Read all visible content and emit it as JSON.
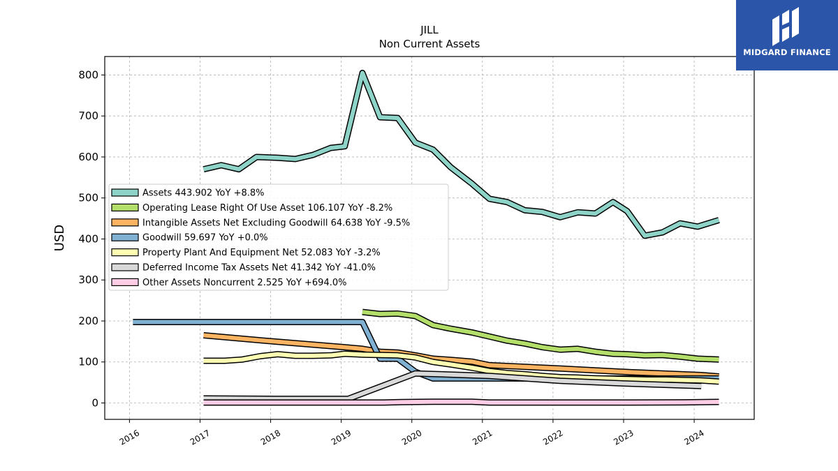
{
  "brand": {
    "name": "MIDGARD FINANCE",
    "bg": "#2a55a8"
  },
  "chart_data": {
    "type": "line",
    "title": "JILL",
    "subtitle": "Non Current  Assets",
    "ylabel": "USD",
    "xlabel": "",
    "xlim": [
      2015.65,
      2024.85
    ],
    "ylim": [
      -40,
      845
    ],
    "yticks": [
      0,
      100,
      200,
      300,
      400,
      500,
      600,
      700,
      800
    ],
    "xticks": [
      2016,
      2017,
      2018,
      2019,
      2020,
      2021,
      2022,
      2023,
      2024
    ],
    "xtick_labels": [
      "2016",
      "2017",
      "2018",
      "2019",
      "2020",
      "2021",
      "2022",
      "2023",
      "2024"
    ],
    "grid": true,
    "legend_position": "center-left",
    "series": [
      {
        "name": "Assets  443.902 YoY +8.8%",
        "color": "#8dd3c7",
        "points": [
          [
            2017.05,
            570
          ],
          [
            2017.3,
            580
          ],
          [
            2017.55,
            570
          ],
          [
            2017.8,
            600
          ],
          [
            2018.1,
            598
          ],
          [
            2018.35,
            595
          ],
          [
            2018.6,
            605
          ],
          [
            2018.85,
            622
          ],
          [
            2019.05,
            626
          ],
          [
            2019.3,
            805
          ],
          [
            2019.55,
            697
          ],
          [
            2019.8,
            695
          ],
          [
            2020.05,
            635
          ],
          [
            2020.3,
            618
          ],
          [
            2020.55,
            575
          ],
          [
            2020.85,
            535
          ],
          [
            2021.1,
            498
          ],
          [
            2021.35,
            490
          ],
          [
            2021.6,
            470
          ],
          [
            2021.85,
            466
          ],
          [
            2022.1,
            453
          ],
          [
            2022.35,
            465
          ],
          [
            2022.6,
            462
          ],
          [
            2022.85,
            490
          ],
          [
            2023.05,
            468
          ],
          [
            2023.3,
            408
          ],
          [
            2023.55,
            416
          ],
          [
            2023.8,
            438
          ],
          [
            2024.05,
            430
          ],
          [
            2024.35,
            446
          ]
        ]
      },
      {
        "name": "Operating Lease Right Of Use Asset  106.107 YoY -8.2%",
        "color": "#b3de69",
        "points": [
          [
            2019.3,
            222
          ],
          [
            2019.55,
            217
          ],
          [
            2019.8,
            218
          ],
          [
            2020.05,
            212
          ],
          [
            2020.3,
            190
          ],
          [
            2020.55,
            181
          ],
          [
            2020.85,
            172
          ],
          [
            2021.1,
            162
          ],
          [
            2021.35,
            152
          ],
          [
            2021.6,
            145
          ],
          [
            2021.85,
            136
          ],
          [
            2022.1,
            130
          ],
          [
            2022.35,
            132
          ],
          [
            2022.6,
            125
          ],
          [
            2022.85,
            120
          ],
          [
            2023.05,
            119
          ],
          [
            2023.3,
            116
          ],
          [
            2023.55,
            117
          ],
          [
            2023.8,
            113
          ],
          [
            2024.05,
            108
          ],
          [
            2024.35,
            106
          ]
        ]
      },
      {
        "name": "Intangible Assets Net Excluding Goodwill  64.638 YoY -9.5%",
        "color": "#fdb462",
        "points": [
          [
            2017.05,
            165
          ],
          [
            2018.05,
            150
          ],
          [
            2019.05,
            136
          ],
          [
            2019.3,
            132
          ],
          [
            2019.55,
            125
          ],
          [
            2019.8,
            123
          ],
          [
            2020.05,
            116
          ],
          [
            2020.3,
            108
          ],
          [
            2020.55,
            105
          ],
          [
            2020.85,
            101
          ],
          [
            2021.1,
            92
          ],
          [
            2022.1,
            84
          ],
          [
            2023.1,
            75
          ],
          [
            2024.1,
            68
          ],
          [
            2024.35,
            64.6
          ]
        ]
      },
      {
        "name": "Goodwill  59.697 YoY +0.0%",
        "color": "#80b1d3",
        "points": [
          [
            2016.05,
            197.5
          ],
          [
            2019.3,
            197.5
          ],
          [
            2019.55,
            108
          ],
          [
            2019.8,
            108
          ],
          [
            2020.05,
            76
          ],
          [
            2020.3,
            59.7
          ],
          [
            2021.1,
            59.7
          ],
          [
            2022.1,
            59.7
          ],
          [
            2023.1,
            59.7
          ],
          [
            2024.35,
            59.7
          ]
        ]
      },
      {
        "name": "Property Plant And Equipment Net  52.083 YoY -3.2%",
        "color": "#ffffb3",
        "points": [
          [
            2017.05,
            103
          ],
          [
            2017.35,
            103
          ],
          [
            2017.6,
            106
          ],
          [
            2017.85,
            114
          ],
          [
            2018.1,
            119
          ],
          [
            2018.35,
            115
          ],
          [
            2018.6,
            115
          ],
          [
            2018.85,
            116
          ],
          [
            2019.05,
            120
          ],
          [
            2019.3,
            118
          ],
          [
            2019.55,
            117
          ],
          [
            2019.8,
            116
          ],
          [
            2020.05,
            111
          ],
          [
            2020.3,
            100
          ],
          [
            2020.55,
            94
          ],
          [
            2020.85,
            86
          ],
          [
            2021.1,
            78
          ],
          [
            2021.35,
            73
          ],
          [
            2021.6,
            70
          ],
          [
            2021.85,
            66
          ],
          [
            2022.1,
            63
          ],
          [
            2022.35,
            62
          ],
          [
            2022.6,
            60
          ],
          [
            2022.85,
            59
          ],
          [
            2023.1,
            58
          ],
          [
            2023.35,
            57
          ],
          [
            2023.6,
            57
          ],
          [
            2023.85,
            56
          ],
          [
            2024.1,
            55
          ],
          [
            2024.35,
            52
          ]
        ]
      },
      {
        "name": "Deferred Income Tax Assets Net  41.342 YoY -41.0%",
        "color": "#d9d9d9",
        "points": [
          [
            2017.05,
            11
          ],
          [
            2018.05,
            10
          ],
          [
            2019.1,
            10
          ],
          [
            2020.05,
            72
          ],
          [
            2021.1,
            66
          ],
          [
            2022.1,
            54
          ],
          [
            2023.1,
            47
          ],
          [
            2024.1,
            41.3
          ]
        ]
      },
      {
        "name": "Other Assets Noncurrent  2.525 YoY +694.0%",
        "color": "#fccde5",
        "points": [
          [
            2017.05,
            1
          ],
          [
            2018.05,
            1
          ],
          [
            2019.05,
            1
          ],
          [
            2019.6,
            1
          ],
          [
            2019.85,
            2
          ],
          [
            2020.3,
            3
          ],
          [
            2020.85,
            3
          ],
          [
            2021.1,
            1
          ],
          [
            2022.1,
            1
          ],
          [
            2023.1,
            1
          ],
          [
            2023.85,
            1.5
          ],
          [
            2024.35,
            2.5
          ]
        ]
      }
    ]
  }
}
